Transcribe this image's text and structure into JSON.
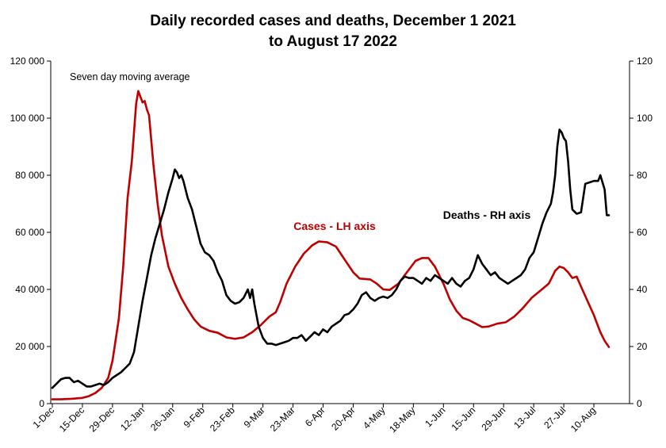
{
  "chart_data": {
    "type": "line",
    "title": {
      "line1": "Daily recorded cases and deaths,  December 1 2021",
      "line2": "to August 17 2022"
    },
    "note": "Seven day moving average",
    "grid": false,
    "y_left": {
      "min": 0,
      "max": 120000,
      "ticks": [
        0,
        20000,
        40000,
        60000,
        80000,
        100000,
        120000
      ],
      "tick_labels": [
        "0",
        "20 000",
        "40 000",
        "60 000",
        "80 000",
        "100 000",
        "120 000"
      ]
    },
    "y_right": {
      "min": 0,
      "max": 120,
      "ticks": [
        0,
        20,
        40,
        60,
        80,
        100,
        120
      ],
      "tick_labels": [
        "0",
        "20",
        "40",
        "60",
        "80",
        "100",
        "120"
      ]
    },
    "x": {
      "start": "1-Dec",
      "end": "17-Aug",
      "tick_labels": [
        "1-Dec",
        "15-Dec",
        "29-Dec",
        "12-Jan",
        "26-Jan",
        "9-Feb",
        "23-Feb",
        "9-Mar",
        "23-Mar",
        "6-Apr",
        "20-Apr",
        "4-May",
        "18-May",
        "1-Jun",
        "15-Jun",
        "29-Jun",
        "13-Jul",
        "27-Jul",
        "10-Aug"
      ]
    },
    "series": [
      {
        "name": "Cases - LH axis",
        "axis": "left",
        "color": "#c00000",
        "points": [
          [
            "1-Dec",
            1500
          ],
          [
            "5-Dec",
            1500
          ],
          [
            "10-Dec",
            1700
          ],
          [
            "15-Dec",
            2000
          ],
          [
            "18-Dec",
            2600
          ],
          [
            "21-Dec",
            3700
          ],
          [
            "24-Dec",
            5500
          ],
          [
            "27-Dec",
            9000
          ],
          [
            "29-Dec",
            15000
          ],
          [
            "1-Jan",
            30000
          ],
          [
            "3-Jan",
            48000
          ],
          [
            "5-Jan",
            72000
          ],
          [
            "7-Jan",
            85000
          ],
          [
            "8-Jan",
            95000
          ],
          [
            "9-Jan",
            105000
          ],
          [
            "10-Jan",
            109500
          ],
          [
            "11-Jan",
            107500
          ],
          [
            "12-Jan",
            105500
          ],
          [
            "13-Jan",
            106000
          ],
          [
            "14-Jan",
            103000
          ],
          [
            "15-Jan",
            101000
          ],
          [
            "17-Jan",
            84000
          ],
          [
            "19-Jan",
            70000
          ],
          [
            "21-Jan",
            59000
          ],
          [
            "24-Jan",
            48000
          ],
          [
            "27-Jan",
            42000
          ],
          [
            "30-Jan",
            37000
          ],
          [
            "2-Feb",
            33000
          ],
          [
            "5-Feb",
            29500
          ],
          [
            "8-Feb",
            27000
          ],
          [
            "12-Feb",
            25500
          ],
          [
            "16-Feb",
            24800
          ],
          [
            "20-Feb",
            23200
          ],
          [
            "24-Feb",
            22700
          ],
          [
            "28-Feb",
            23200
          ],
          [
            "4-Mar",
            25000
          ],
          [
            "8-Mar",
            27500
          ],
          [
            "12-Mar",
            30500
          ],
          [
            "15-Mar",
            32000
          ],
          [
            "17-Mar",
            35500
          ],
          [
            "20-Mar",
            42000
          ],
          [
            "24-Mar",
            48000
          ],
          [
            "28-Mar",
            52500
          ],
          [
            "1-Apr",
            55500
          ],
          [
            "4-Apr",
            56800
          ],
          [
            "8-Apr",
            56500
          ],
          [
            "12-Apr",
            55000
          ],
          [
            "16-Apr",
            50500
          ],
          [
            "20-Apr",
            46000
          ],
          [
            "23-Apr",
            43800
          ],
          [
            "28-Apr",
            43500
          ],
          [
            "1-May",
            42000
          ],
          [
            "4-May",
            40000
          ],
          [
            "7-May",
            39800
          ],
          [
            "11-May",
            42000
          ],
          [
            "15-May",
            46000
          ],
          [
            "19-May",
            50000
          ],
          [
            "22-May",
            51000
          ],
          [
            "25-May",
            51000
          ],
          [
            "28-May",
            48000
          ],
          [
            "1-Jun",
            42000
          ],
          [
            "4-Jun",
            36500
          ],
          [
            "7-Jun",
            32500
          ],
          [
            "10-Jun",
            30000
          ],
          [
            "13-Jun",
            29200
          ],
          [
            "16-Jun",
            28000
          ],
          [
            "19-Jun",
            26800
          ],
          [
            "22-Jun",
            27000
          ],
          [
            "26-Jun",
            28000
          ],
          [
            "30-Jun",
            28500
          ],
          [
            "4-Jul",
            30500
          ],
          [
            "8-Jul",
            33500
          ],
          [
            "12-Jul",
            37000
          ],
          [
            "16-Jul",
            39500
          ],
          [
            "20-Jul",
            42000
          ],
          [
            "23-Jul",
            46500
          ],
          [
            "25-Jul",
            48000
          ],
          [
            "27-Jul",
            47500
          ],
          [
            "29-Jul",
            46000
          ],
          [
            "31-Jul",
            44000
          ],
          [
            "2-Aug",
            44500
          ],
          [
            "4-Aug",
            41000
          ],
          [
            "7-Aug",
            36000
          ],
          [
            "10-Aug",
            31000
          ],
          [
            "13-Aug",
            25000
          ],
          [
            "15-Aug",
            22000
          ],
          [
            "17-Aug",
            19800
          ]
        ]
      },
      {
        "name": "Deaths - RH axis",
        "axis": "right",
        "color": "#000000",
        "points": [
          [
            "1-Dec",
            5.5
          ],
          [
            "3-Dec",
            7
          ],
          [
            "5-Dec",
            8.5
          ],
          [
            "7-Dec",
            9
          ],
          [
            "9-Dec",
            9
          ],
          [
            "11-Dec",
            7.5
          ],
          [
            "13-Dec",
            8
          ],
          [
            "15-Dec",
            7
          ],
          [
            "17-Dec",
            6
          ],
          [
            "19-Dec",
            6
          ],
          [
            "21-Dec",
            6.5
          ],
          [
            "23-Dec",
            7
          ],
          [
            "25-Dec",
            6.5
          ],
          [
            "27-Dec",
            7.5
          ],
          [
            "29-Dec",
            9
          ],
          [
            "31-Dec",
            10
          ],
          [
            "2-Jan",
            11
          ],
          [
            "4-Jan",
            12.5
          ],
          [
            "6-Jan",
            14
          ],
          [
            "8-Jan",
            18
          ],
          [
            "10-Jan",
            27
          ],
          [
            "12-Jan",
            36
          ],
          [
            "14-Jan",
            44
          ],
          [
            "16-Jan",
            52
          ],
          [
            "18-Jan",
            58
          ],
          [
            "20-Jan",
            63
          ],
          [
            "22-Jan",
            68
          ],
          [
            "24-Jan",
            74
          ],
          [
            "26-Jan",
            79
          ],
          [
            "27-Jan",
            82
          ],
          [
            "28-Jan",
            81
          ],
          [
            "29-Jan",
            79
          ],
          [
            "30-Jan",
            80
          ],
          [
            "31-Jan",
            78
          ],
          [
            "2-Feb",
            72
          ],
          [
            "4-Feb",
            68
          ],
          [
            "6-Feb",
            62
          ],
          [
            "8-Feb",
            56
          ],
          [
            "10-Feb",
            53
          ],
          [
            "12-Feb",
            52
          ],
          [
            "14-Feb",
            50
          ],
          [
            "16-Feb",
            46
          ],
          [
            "18-Feb",
            43
          ],
          [
            "20-Feb",
            38
          ],
          [
            "22-Feb",
            36
          ],
          [
            "24-Feb",
            35
          ],
          [
            "26-Feb",
            35.5
          ],
          [
            "28-Feb",
            37
          ],
          [
            "2-Mar",
            40
          ],
          [
            "3-Mar",
            37
          ],
          [
            "4-Mar",
            40
          ],
          [
            "5-Mar",
            35
          ],
          [
            "7-Mar",
            27
          ],
          [
            "9-Mar",
            23
          ],
          [
            "11-Mar",
            21
          ],
          [
            "13-Mar",
            21
          ],
          [
            "15-Mar",
            20.5
          ],
          [
            "17-Mar",
            21
          ],
          [
            "19-Mar",
            21.5
          ],
          [
            "21-Mar",
            22
          ],
          [
            "23-Mar",
            23
          ],
          [
            "25-Mar",
            23
          ],
          [
            "27-Mar",
            24
          ],
          [
            "29-Mar",
            22
          ],
          [
            "31-Mar",
            23.5
          ],
          [
            "2-Apr",
            25
          ],
          [
            "4-Apr",
            24
          ],
          [
            "6-Apr",
            26
          ],
          [
            "8-Apr",
            25
          ],
          [
            "10-Apr",
            27
          ],
          [
            "12-Apr",
            28
          ],
          [
            "14-Apr",
            29
          ],
          [
            "16-Apr",
            31
          ],
          [
            "18-Apr",
            31.5
          ],
          [
            "20-Apr",
            33
          ],
          [
            "22-Apr",
            35
          ],
          [
            "24-Apr",
            38
          ],
          [
            "26-Apr",
            39
          ],
          [
            "28-Apr",
            37
          ],
          [
            "30-Apr",
            36
          ],
          [
            "2-May",
            37
          ],
          [
            "4-May",
            37.5
          ],
          [
            "6-May",
            37
          ],
          [
            "8-May",
            38
          ],
          [
            "10-May",
            40
          ],
          [
            "12-May",
            43
          ],
          [
            "14-May",
            44.5
          ],
          [
            "16-May",
            44
          ],
          [
            "18-May",
            44
          ],
          [
            "20-May",
            43
          ],
          [
            "22-May",
            42
          ],
          [
            "24-May",
            44
          ],
          [
            "26-May",
            43
          ],
          [
            "28-May",
            45
          ],
          [
            "30-May",
            44
          ],
          [
            "1-Jun",
            43
          ],
          [
            "3-Jun",
            42
          ],
          [
            "5-Jun",
            44
          ],
          [
            "7-Jun",
            42
          ],
          [
            "9-Jun",
            41
          ],
          [
            "11-Jun",
            43
          ],
          [
            "13-Jun",
            44
          ],
          [
            "15-Jun",
            47
          ],
          [
            "17-Jun",
            52
          ],
          [
            "19-Jun",
            49
          ],
          [
            "21-Jun",
            47
          ],
          [
            "23-Jun",
            45
          ],
          [
            "25-Jun",
            46
          ],
          [
            "27-Jun",
            44
          ],
          [
            "29-Jun",
            43
          ],
          [
            "1-Jul",
            42
          ],
          [
            "3-Jul",
            43
          ],
          [
            "5-Jul",
            44
          ],
          [
            "7-Jul",
            45
          ],
          [
            "9-Jul",
            47
          ],
          [
            "11-Jul",
            51
          ],
          [
            "13-Jul",
            53
          ],
          [
            "15-Jul",
            58
          ],
          [
            "17-Jul",
            63
          ],
          [
            "19-Jul",
            67
          ],
          [
            "21-Jul",
            70
          ],
          [
            "22-Jul",
            74
          ],
          [
            "23-Jul",
            80
          ],
          [
            "24-Jul",
            90
          ],
          [
            "25-Jul",
            96
          ],
          [
            "26-Jul",
            95
          ],
          [
            "27-Jul",
            93
          ],
          [
            "28-Jul",
            92
          ],
          [
            "29-Jul",
            85
          ],
          [
            "30-Jul",
            75
          ],
          [
            "31-Jul",
            68
          ],
          [
            "2-Aug",
            66.5
          ],
          [
            "4-Aug",
            67
          ],
          [
            "6-Aug",
            77
          ],
          [
            "8-Aug",
            77.5
          ],
          [
            "10-Aug",
            78
          ],
          [
            "12-Aug",
            78
          ],
          [
            "13-Aug",
            80
          ],
          [
            "15-Aug",
            75
          ],
          [
            "16-Aug",
            66
          ],
          [
            "17-Aug",
            66
          ]
        ]
      }
    ]
  }
}
